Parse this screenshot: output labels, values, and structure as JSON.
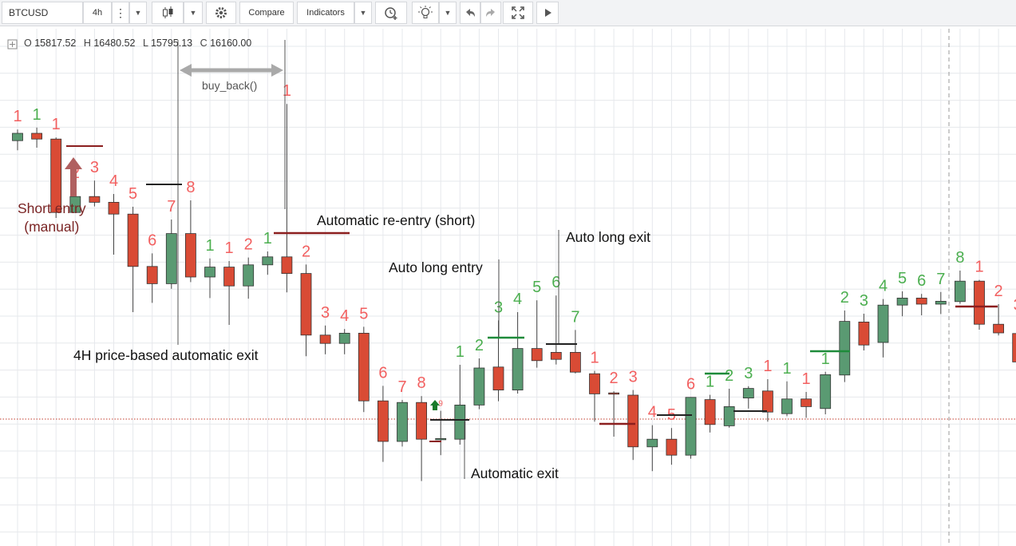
{
  "toolbar": {
    "symbol": "BTCUSD",
    "interval": "4h",
    "compare_label": "Compare",
    "indicators_label": "Indicators",
    "icons": [
      "more-vertical-icon",
      "candles-icon",
      "gear-icon",
      "alarm-add-icon",
      "lightbulb-icon",
      "undo-icon",
      "redo-icon",
      "fullscreen-icon",
      "play-icon"
    ]
  },
  "ohlc": {
    "o_label": "O",
    "o_value": "15817.52",
    "h_label": "H",
    "h_value": "16480.52",
    "l_label": "L",
    "l_value": "15795.13",
    "c_label": "C",
    "c_value": "16160.00"
  },
  "annotations": {
    "short_entry": "Short entry",
    "manual": "(manual)",
    "buy_back": "buy_back()",
    "reentry": "Automatic re-entry (short)",
    "auto_long_entry": "Auto long entry",
    "auto_long_exit": "Auto long exit",
    "price_exit": "4H price-based automatic exit",
    "auto_exit": "Automatic exit"
  },
  "colors": {
    "up": "#5a9a72",
    "down": "#d94b35",
    "count_up": "#4caf50",
    "count_down": "#f26060",
    "grid": "#e6e8ec",
    "reentry_line": "#8b1e1e",
    "long_line": "#1e8b3a"
  },
  "chart_data": {
    "type": "candlestick",
    "symbol": "BTCUSD",
    "interval": "4h",
    "candles": [
      {
        "o": 14650,
        "h": 15000,
        "l": 14350,
        "c": 14880,
        "count": "1",
        "count_dir": "down"
      },
      {
        "o": 14880,
        "h": 15060,
        "l": 14430,
        "c": 14700,
        "count": "1",
        "count_dir": "up"
      },
      {
        "o": 14700,
        "h": 14750,
        "l": 12230,
        "c": 12400,
        "count": "1",
        "count_dir": "down"
      },
      {
        "o": 12400,
        "h": 13230,
        "l": 12400,
        "c": 12900,
        "count": "2",
        "count_dir": "down"
      },
      {
        "o": 12900,
        "h": 13400,
        "l": 12590,
        "c": 12720,
        "count": "3",
        "count_dir": "down"
      },
      {
        "o": 12720,
        "h": 12980,
        "l": 11080,
        "c": 12350,
        "count": "4",
        "count_dir": "down"
      },
      {
        "o": 12350,
        "h": 12580,
        "l": 9280,
        "c": 10710,
        "count": "5",
        "count_dir": "down"
      },
      {
        "o": 10710,
        "h": 11120,
        "l": 9570,
        "c": 10170,
        "count": "6",
        "count_dir": "down"
      },
      {
        "o": 10170,
        "h": 12180,
        "l": 10010,
        "c": 11740,
        "count": "7",
        "count_dir": "down"
      },
      {
        "o": 11740,
        "h": 12780,
        "l": 10220,
        "c": 10380,
        "count": "8",
        "count_dir": "down"
      },
      {
        "o": 10380,
        "h": 10960,
        "l": 9720,
        "c": 10690,
        "count": "1",
        "count_dir": "up"
      },
      {
        "o": 10690,
        "h": 10880,
        "l": 8880,
        "c": 10100,
        "count": "1",
        "count_dir": "down"
      },
      {
        "o": 10100,
        "h": 10990,
        "l": 9700,
        "c": 10760,
        "count": "2",
        "count_dir": "down"
      },
      {
        "o": 10760,
        "h": 11180,
        "l": 10450,
        "c": 11010,
        "count": "1",
        "count_dir": "up"
      },
      {
        "o": 11010,
        "h": 15800,
        "l": 9900,
        "c": 10490,
        "count": "1",
        "count_dir": "down"
      },
      {
        "o": 10490,
        "h": 10770,
        "l": 7900,
        "c": 8560,
        "count": "2",
        "count_dir": "down"
      },
      {
        "o": 8560,
        "h": 8860,
        "l": 7960,
        "c": 8300,
        "count": "3",
        "count_dir": "down"
      },
      {
        "o": 8300,
        "h": 8750,
        "l": 7960,
        "c": 8620,
        "count": "4",
        "count_dir": "down"
      },
      {
        "o": 8620,
        "h": 8820,
        "l": 6150,
        "c": 6500,
        "count": "5",
        "count_dir": "down"
      },
      {
        "o": 6500,
        "h": 6970,
        "l": 4590,
        "c": 5230,
        "count": "6",
        "count_dir": "down"
      },
      {
        "o": 5230,
        "h": 6530,
        "l": 5070,
        "c": 6450,
        "count": "7",
        "count_dir": "down"
      },
      {
        "o": 6450,
        "h": 6650,
        "l": 3990,
        "c": 5300,
        "count": "8",
        "count_dir": "down"
      },
      {
        "o": 5320,
        "h": 6190,
        "l": 4800,
        "c": 5320,
        "count": "9",
        "count_dir": "down"
      },
      {
        "o": 5300,
        "h": 7630,
        "l": 5130,
        "c": 6370,
        "count": "1",
        "count_dir": "up"
      },
      {
        "o": 6370,
        "h": 7830,
        "l": 6240,
        "c": 7530,
        "count": "2",
        "count_dir": "up"
      },
      {
        "o": 7560,
        "h": 9020,
        "l": 6490,
        "c": 6840,
        "count": "3",
        "count_dir": "up"
      },
      {
        "o": 6840,
        "h": 9280,
        "l": 6730,
        "c": 8140,
        "count": "4",
        "count_dir": "up"
      },
      {
        "o": 8140,
        "h": 9650,
        "l": 7540,
        "c": 7760,
        "count": "5",
        "count_dir": "up"
      },
      {
        "o": 8020,
        "h": 9800,
        "l": 7640,
        "c": 7800,
        "count": "6",
        "count_dir": "up"
      },
      {
        "o": 8020,
        "h": 8720,
        "l": 7360,
        "c": 7400,
        "count": "7",
        "count_dir": "up"
      },
      {
        "o": 7350,
        "h": 7440,
        "l": 5850,
        "c": 6720,
        "count": "1",
        "count_dir": "down"
      },
      {
        "o": 6750,
        "h": 6800,
        "l": 5380,
        "c": 6710,
        "count": "2",
        "count_dir": "down"
      },
      {
        "o": 6680,
        "h": 6840,
        "l": 4650,
        "c": 5060,
        "count": "3",
        "count_dir": "down"
      },
      {
        "o": 5060,
        "h": 5740,
        "l": 4300,
        "c": 5300,
        "count": "4",
        "count_dir": "down"
      },
      {
        "o": 5300,
        "h": 5650,
        "l": 4500,
        "c": 4800,
        "count": "5",
        "count_dir": "down"
      },
      {
        "o": 4800,
        "h": 6620,
        "l": 4690,
        "c": 6610,
        "count": "6",
        "count_dir": "down"
      },
      {
        "o": 6540,
        "h": 6690,
        "l": 5510,
        "c": 5760,
        "count": "1",
        "count_dir": "up"
      },
      {
        "o": 5720,
        "h": 6880,
        "l": 5660,
        "c": 6320,
        "count": "2",
        "count_dir": "up"
      },
      {
        "o": 6590,
        "h": 6960,
        "l": 6260,
        "c": 6890,
        "count": "3",
        "count_dir": "up"
      },
      {
        "o": 6810,
        "h": 7180,
        "l": 5850,
        "c": 6150,
        "count": "1",
        "count_dir": "down"
      },
      {
        "o": 6100,
        "h": 7110,
        "l": 6020,
        "c": 6560,
        "count": "1",
        "count_dir": "up"
      },
      {
        "o": 6560,
        "h": 6780,
        "l": 5970,
        "c": 6320,
        "count": "1",
        "count_dir": "down"
      },
      {
        "o": 6260,
        "h": 7410,
        "l": 6080,
        "c": 7320,
        "count": "1",
        "count_dir": "up"
      },
      {
        "o": 7310,
        "h": 9330,
        "l": 7090,
        "c": 8990,
        "count": "2",
        "count_dir": "up"
      },
      {
        "o": 8970,
        "h": 9230,
        "l": 8080,
        "c": 8250,
        "count": "3",
        "count_dir": "up"
      },
      {
        "o": 8330,
        "h": 9690,
        "l": 7860,
        "c": 9500,
        "count": "4",
        "count_dir": "up"
      },
      {
        "o": 9500,
        "h": 9930,
        "l": 9150,
        "c": 9720,
        "count": "5",
        "count_dir": "up"
      },
      {
        "o": 9720,
        "h": 9850,
        "l": 9180,
        "c": 9530,
        "count": "6",
        "count_dir": "up"
      },
      {
        "o": 9530,
        "h": 9910,
        "l": 9220,
        "c": 9620,
        "count": "7",
        "count_dir": "up"
      },
      {
        "o": 9610,
        "h": 10580,
        "l": 9540,
        "c": 10250,
        "count": "8",
        "count_dir": "up"
      },
      {
        "o": 10250,
        "h": 10290,
        "l": 8730,
        "c": 8900,
        "count": "1",
        "count_dir": "down"
      },
      {
        "o": 8900,
        "h": 9530,
        "l": 8550,
        "c": 8630,
        "count": "2",
        "count_dir": "down"
      },
      {
        "o": 8610,
        "h": 9090,
        "l": 7280,
        "c": 7720,
        "count": "3",
        "count_dir": "down"
      }
    ],
    "levels": [
      {
        "price": 5930,
        "style": "dotted",
        "color": "#c0392b"
      }
    ]
  }
}
